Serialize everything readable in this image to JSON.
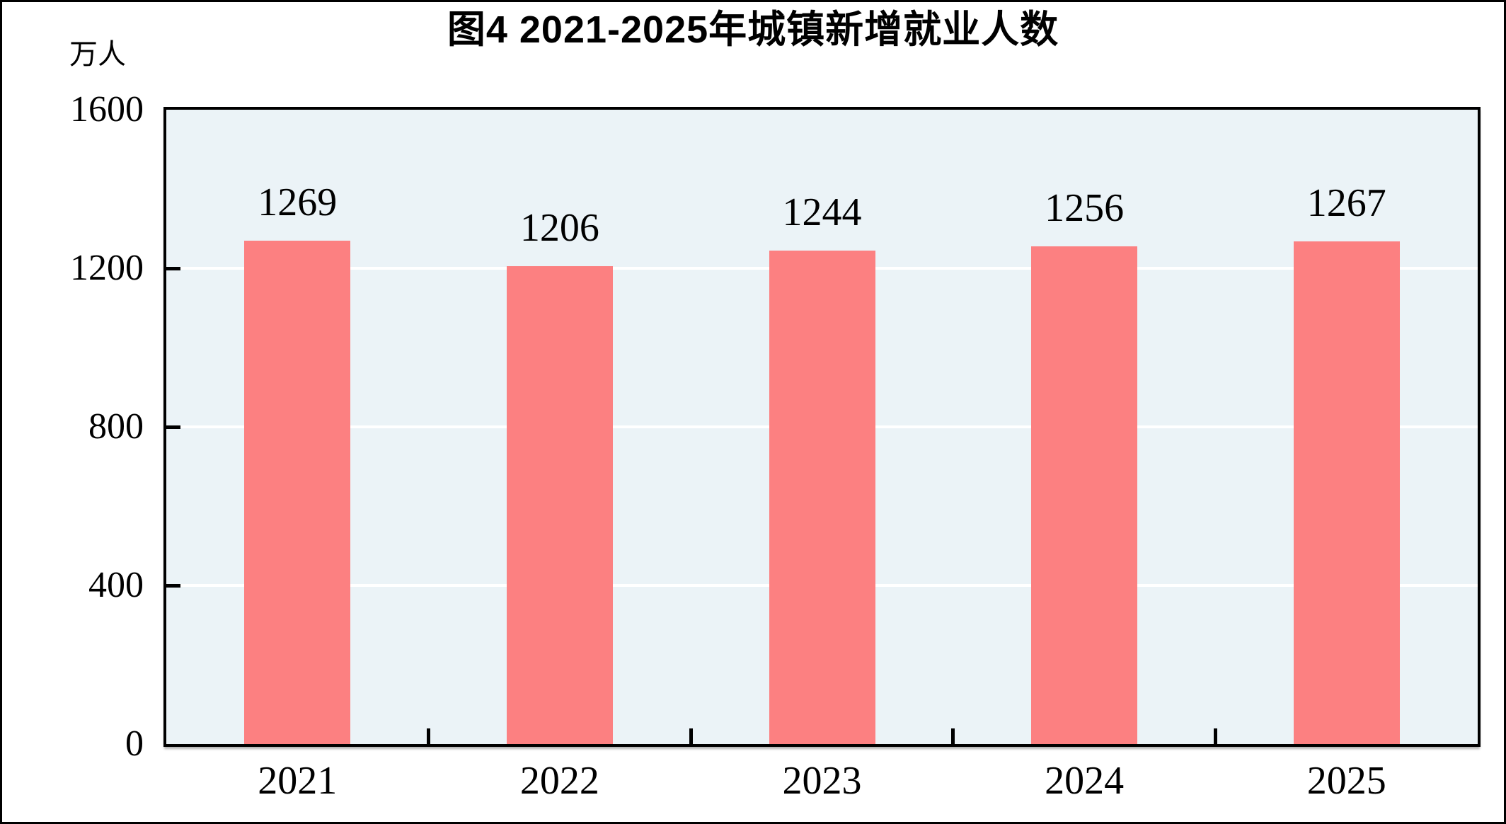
{
  "page": {
    "background": "#FFFFFF",
    "outer_border_color": "#000000"
  },
  "chart_data": {
    "type": "bar",
    "title": "图4  2021-2025年城镇新增就业人数",
    "ylabel": "万人",
    "xlabel": "",
    "categories": [
      "2021",
      "2022",
      "2023",
      "2024",
      "2025"
    ],
    "values": [
      1269,
      1206,
      1244,
      1256,
      1267
    ],
    "data_labels": [
      "1269",
      "1206",
      "1244",
      "1256",
      "1267"
    ],
    "ylim": [
      0,
      1600
    ],
    "yticks": [
      0,
      400,
      800,
      1200,
      1600
    ],
    "gridlines_at": [
      400,
      800,
      1200
    ],
    "grid": "on",
    "legend": "none",
    "colors": {
      "bar": "#FC8081",
      "plot_background": "#EBF3F7",
      "gridline": "#FFFFFF",
      "axis": "#000000",
      "text": "#000000"
    }
  }
}
